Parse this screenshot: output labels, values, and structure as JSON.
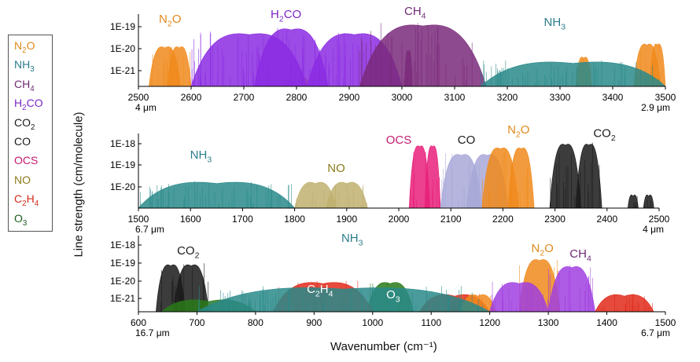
{
  "legend": {
    "items": [
      {
        "key": "N2O",
        "color": "#e0891c"
      },
      {
        "key": "NH3",
        "color": "#2a7d8a"
      },
      {
        "key": "CH4",
        "color": "#6e2a73"
      },
      {
        "key": "H2CO",
        "color": "#7b27c7"
      },
      {
        "key": "CO2",
        "color": "#1a1a1a"
      },
      {
        "key": "CO",
        "color": "#1a1a1a"
      },
      {
        "key": "OCS",
        "color": "#c41a6e"
      },
      {
        "key": "NO",
        "color": "#8a7a1a"
      },
      {
        "key": "C2H4",
        "color": "#d42a1a"
      },
      {
        "key": "O3",
        "color": "#1e5a1e"
      }
    ]
  },
  "ylabel": "Line strength (cm/molecule)",
  "xlabel": "Wavenumber (cm⁻¹)",
  "chart_data": [
    {
      "type": "area",
      "xlim": [
        2500,
        3500
      ],
      "ylog": true,
      "yticks": [
        "1E-19",
        "1E-20",
        "1E-21"
      ],
      "xticks": [
        "2500",
        "2600",
        "2700",
        "2800",
        "2900",
        "3000",
        "3100",
        "3200",
        "3300",
        "3400",
        "3500"
      ],
      "range_labels": {
        "left": "4 μm",
        "right": "2.9 μm"
      },
      "series": [
        {
          "name": "N2O",
          "color": "#f08a1c",
          "bands": [
            [
              2520,
              2580,
              1.5e-20
            ],
            [
              2555,
              2600,
              1.5e-20
            ],
            [
              2770,
              2800,
              5e-22
            ],
            [
              2800,
              2825,
              5e-22
            ],
            [
              3330,
              3360,
              5e-21
            ],
            [
              3440,
              3490,
              2e-20
            ],
            [
              3470,
              3500,
              2e-20
            ]
          ]
        },
        {
          "name": "H2CO",
          "color": "#8b2be2",
          "bands": [
            [
              2600,
              2820,
              6e-20
            ],
            [
              2720,
              2860,
              1e-19
            ],
            [
              2820,
              3000,
              6e-20
            ]
          ]
        },
        {
          "name": "CH4",
          "color": "#7a2a7a",
          "bands": [
            [
              3005,
              3020,
              1e-20
            ],
            [
              2920,
              3160,
              1.5e-19
            ]
          ]
        },
        {
          "name": "NH3",
          "color": "#2a8a8a",
          "bands": [
            [
              3150,
              3500,
              3e-21
            ]
          ]
        }
      ],
      "labels": [
        {
          "key": "N2O",
          "x": 2560,
          "y": 1.5e-19,
          "color": "#e0891c"
        },
        {
          "key": "H2CO",
          "x": 2780,
          "y": 2.5e-19,
          "color": "#7b27c7"
        },
        {
          "key": "CH4",
          "x": 3025,
          "y": 3.5e-19,
          "color": "#6e2a73"
        },
        {
          "key": "NH3",
          "x": 3290,
          "y": 1.1e-19,
          "color": "#2a7d8a"
        }
      ]
    },
    {
      "type": "area",
      "xlim": [
        1500,
        2500
      ],
      "ylog": true,
      "yticks": [
        "1E-18",
        "1E-19",
        "1E-20"
      ],
      "xticks": [
        "1500",
        "1600",
        "1700",
        "1800",
        "1900",
        "2000",
        "2100",
        "2200",
        "2300",
        "2400",
        "2500"
      ],
      "range_labels": {
        "left": "6.7 μm",
        "right": "4 μm"
      },
      "series": [
        {
          "name": "NH3",
          "color": "#2a8a8a",
          "bands": [
            [
              1500,
              1800,
              2e-20
            ]
          ]
        },
        {
          "name": "NO",
          "color": "#c0b070",
          "bands": [
            [
              1800,
              1880,
              2e-20
            ],
            [
              1860,
              1940,
              2e-20
            ]
          ]
        },
        {
          "name": "OCS",
          "color": "#e8207a",
          "bands": [
            [
              2020,
              2060,
              1e-18
            ],
            [
              2050,
              2080,
              1e-18
            ]
          ]
        },
        {
          "name": "CO",
          "color": "#a8a8d8",
          "bands": [
            [
              2080,
              2160,
              4e-19
            ],
            [
              2130,
              2210,
              4e-19
            ]
          ]
        },
        {
          "name": "N2O",
          "color": "#f08a1c",
          "bands": [
            [
              2160,
              2230,
              8e-19
            ],
            [
              2210,
              2260,
              8e-19
            ]
          ]
        },
        {
          "name": "CO2",
          "color": "#1a1a1a",
          "bands": [
            [
              2290,
              2350,
              1.2e-18
            ],
            [
              2340,
              2390,
              1.2e-18
            ],
            [
              2440,
              2460,
              5e-21
            ],
            [
              2470,
              2490,
              5e-21
            ]
          ]
        }
      ],
      "labels": [
        {
          "key": "NH3",
          "x": 1620,
          "y": 2e-19,
          "color": "#2a7d8a"
        },
        {
          "key": "NO",
          "x": 1880,
          "y": 5e-20,
          "color": "#8a7a1a"
        },
        {
          "key": "OCS",
          "x": 2000,
          "y": 1e-18,
          "color": "#c41a6e"
        },
        {
          "key": "CO",
          "x": 2130,
          "y": 1e-18,
          "color": "#1a1a1a"
        },
        {
          "key": "N2O",
          "x": 2230,
          "y": 3e-18,
          "color": "#e0891c"
        },
        {
          "key": "CO2",
          "x": 2395,
          "y": 2e-18,
          "color": "#1a1a1a"
        }
      ]
    },
    {
      "type": "area",
      "xlim": [
        600,
        1500
      ],
      "ylog": true,
      "yticks": [
        "1E-18",
        "1E-19",
        "1E-20",
        "1E-21"
      ],
      "xticks": [
        "600",
        "700",
        "800",
        "900",
        "1000",
        "1100",
        "1200",
        "1300",
        "1400",
        "1500"
      ],
      "range_labels": {
        "left": "16.7 μm",
        "right": "6.7 μm"
      },
      "series": [
        {
          "name": "CO2",
          "color": "#1a1a1a",
          "bands": [
            [
              630,
              680,
              1e-19
            ],
            [
              660,
              720,
              1e-19
            ]
          ]
        },
        {
          "name": "O3",
          "color": "#2a7a1a",
          "bands": [
            [
              640,
              800,
              1e-21
            ],
            [
              990,
              1070,
              1e-20
            ],
            [
              1130,
              1170,
              1e-21
            ]
          ]
        },
        {
          "name": "C2H4",
          "color": "#e02a1a",
          "bands": [
            [
              830,
              1000,
              1e-20
            ],
            [
              1080,
              1200,
              2e-21
            ],
            [
              1380,
              1480,
              2e-21
            ]
          ]
        },
        {
          "name": "N2O",
          "color": "#f08a1c",
          "bands": [
            [
              1150,
              1210,
              2e-21
            ],
            [
              1250,
              1320,
              2e-19
            ]
          ]
        },
        {
          "name": "CH4",
          "color": "#a040e0",
          "bands": [
            [
              1200,
              1300,
              1e-20
            ],
            [
              1300,
              1380,
              8e-20
            ]
          ]
        },
        {
          "name": "NH3",
          "color": "#2a8a8a",
          "bands": [
            [
              700,
              1200,
              5e-21
            ]
          ]
        }
      ],
      "labels": [
        {
          "key": "CO2",
          "x": 685,
          "y": 3e-19,
          "color": "#1a1a1a"
        },
        {
          "key": "NH3",
          "x": 965,
          "y": 1.5e-18,
          "color": "#2a7d8a"
        },
        {
          "key": "C2H4",
          "x": 910,
          "y": 2e-21,
          "color": "#ffffff"
        },
        {
          "key": "O3",
          "x": 1035,
          "y": 1e-21,
          "color": "#ffffff"
        },
        {
          "key": "N2O",
          "x": 1290,
          "y": 4e-19,
          "color": "#e0891c"
        },
        {
          "key": "CH4",
          "x": 1355,
          "y": 2e-19,
          "color": "#6e2a73"
        }
      ]
    }
  ]
}
